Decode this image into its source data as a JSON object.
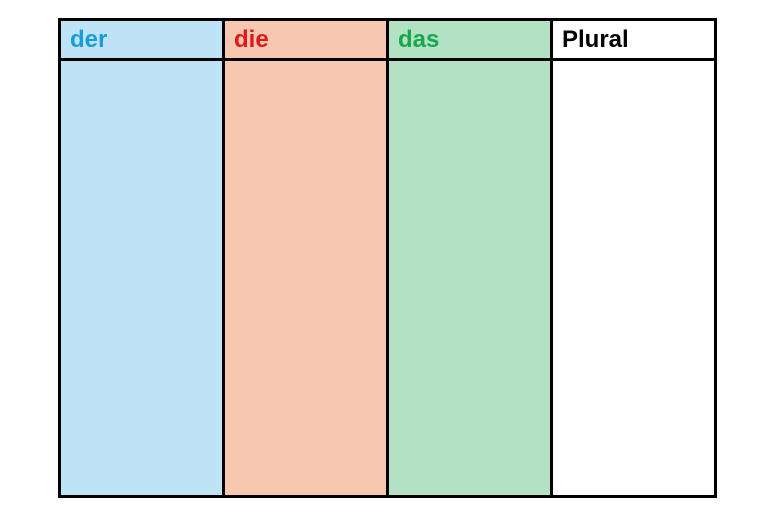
{
  "page": {
    "background": "#ffffff"
  },
  "table": {
    "border_color": "#000000",
    "columns": [
      {
        "label": "der",
        "text_color": "#1a9cd8",
        "bg_color": "#bee3f6"
      },
      {
        "label": "die",
        "text_color": "#e0191c",
        "bg_color": "#f8c7af"
      },
      {
        "label": "das",
        "text_color": "#19a74e",
        "bg_color": "#b2e1c4"
      },
      {
        "label": "Plural",
        "text_color": "#000000",
        "bg_color": "#ffffff"
      }
    ]
  }
}
